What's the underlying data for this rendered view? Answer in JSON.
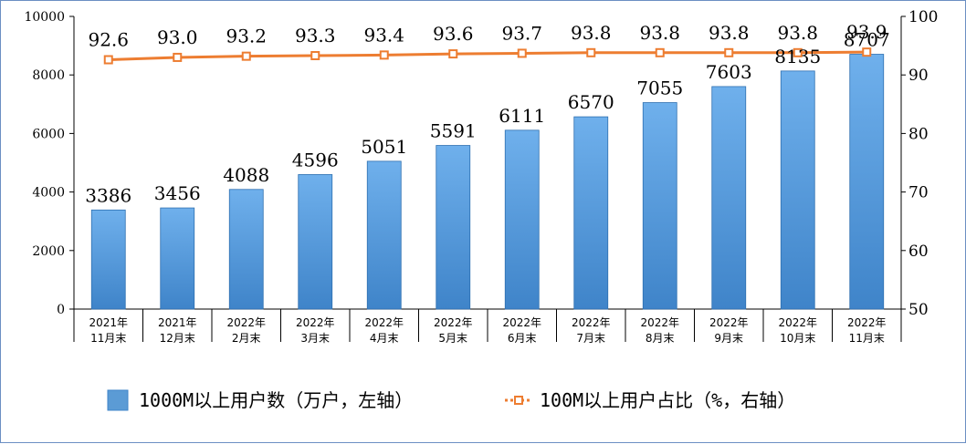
{
  "chart_data": {
    "type": "bar+line",
    "categories": [
      [
        "2021年",
        "11月末"
      ],
      [
        "2021年",
        "12月末"
      ],
      [
        "2022年",
        "2月末"
      ],
      [
        "2022年",
        "3月末"
      ],
      [
        "2022年",
        "4月末"
      ],
      [
        "2022年",
        "5月末"
      ],
      [
        "2022年",
        "6月末"
      ],
      [
        "2022年",
        "7月末"
      ],
      [
        "2022年",
        "8月末"
      ],
      [
        "2022年",
        "9月末"
      ],
      [
        "2022年",
        "10月末"
      ],
      [
        "2022年",
        "11月末"
      ]
    ],
    "series": [
      {
        "name": "1000M以上用户数（万户，左轴）",
        "type": "bar",
        "axis": "left",
        "color": "#5b9bd5",
        "values": [
          3386,
          3456,
          4088,
          4596,
          5051,
          5591,
          6111,
          6570,
          7055,
          7603,
          8135,
          8707
        ]
      },
      {
        "name": "100M以上用户占比（%，右轴）",
        "type": "line",
        "axis": "right",
        "color": "#ed7d31",
        "values": [
          92.6,
          93.0,
          93.2,
          93.3,
          93.4,
          93.6,
          93.7,
          93.8,
          93.8,
          93.8,
          93.8,
          93.9
        ],
        "labels": [
          "92.6",
          "93.0",
          "93.2",
          "93.3",
          "93.4",
          "93.6",
          "93.7",
          "93.8",
          "93.8",
          "93.8",
          "93.8",
          "93.9"
        ]
      }
    ],
    "left_axis": {
      "ylim": [
        0,
        10000
      ],
      "ticks": [
        0,
        2000,
        4000,
        6000,
        8000,
        10000
      ]
    },
    "right_axis": {
      "ylim": [
        50,
        100
      ],
      "ticks": [
        50,
        60,
        70,
        80,
        90,
        100
      ]
    },
    "legend": "bottom",
    "grid": false
  }
}
